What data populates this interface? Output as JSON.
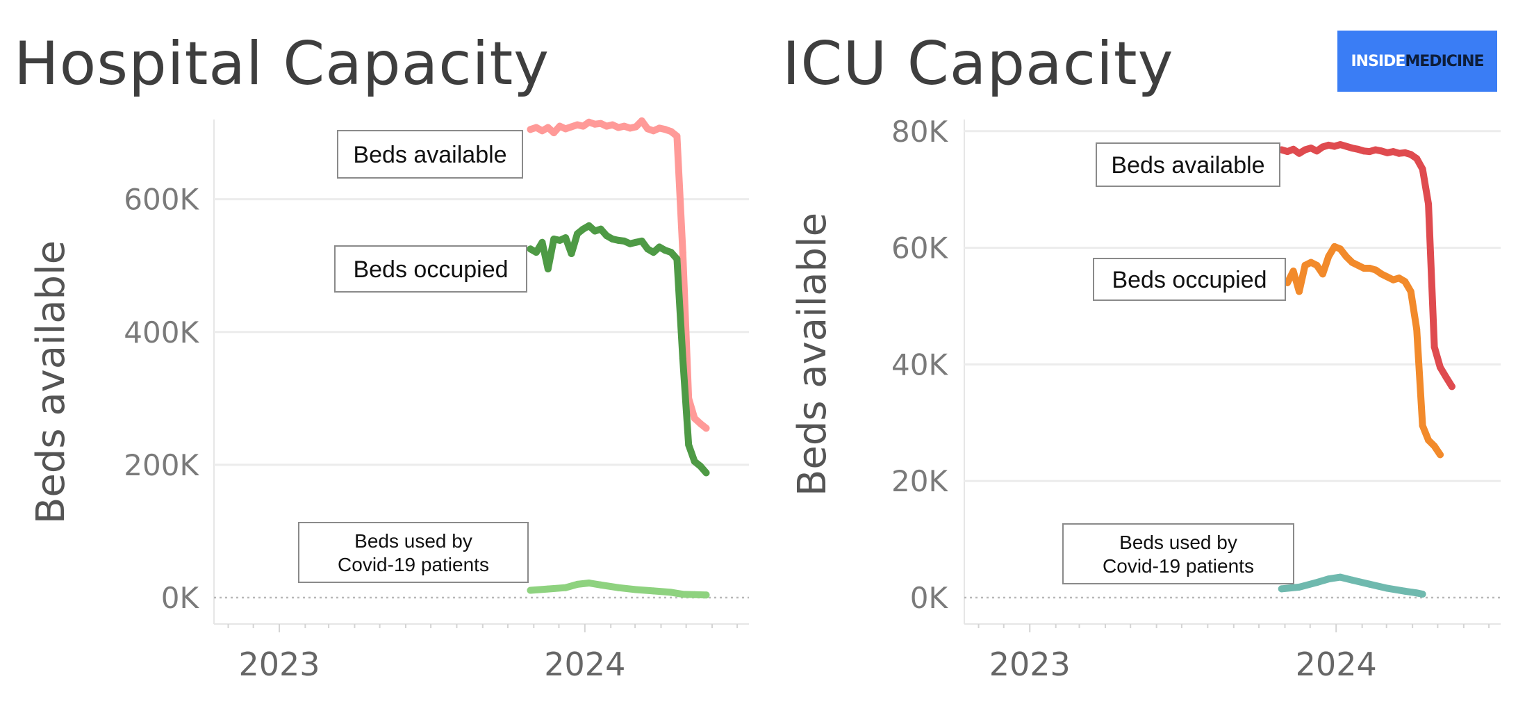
{
  "header": {
    "brand": {
      "part1": "INSIDE",
      "part2": "MEDICINE"
    }
  },
  "chart_data": [
    {
      "type": "line",
      "title": "Hospital Capacity",
      "ylabel": "Beds available",
      "xlabel": "",
      "ylim": [
        0,
        720000
      ],
      "yticks": [
        0,
        200000,
        400000,
        600000
      ],
      "ytick_labels": [
        "0K",
        "200K",
        "400K",
        "600K"
      ],
      "xlim": [
        "2022-10-15",
        "2024-07-15"
      ],
      "xticks": [
        "2023-01-01",
        "2024-01-01"
      ],
      "xtick_labels": [
        "2023",
        "2024"
      ],
      "grid": true,
      "series": [
        {
          "name": "Beds available",
          "color": "#ff9a98",
          "points": [
            [
              "2023-10-28",
              705000
            ],
            [
              "2023-11-04",
              708000
            ],
            [
              "2023-11-11",
              703000
            ],
            [
              "2023-11-18",
              708000
            ],
            [
              "2023-11-25",
              700000
            ],
            [
              "2023-12-02",
              710000
            ],
            [
              "2023-12-09",
              706000
            ],
            [
              "2023-12-16",
              709000
            ],
            [
              "2023-12-23",
              712000
            ],
            [
              "2023-12-30",
              710000
            ],
            [
              "2024-01-06",
              716000
            ],
            [
              "2024-01-13",
              713000
            ],
            [
              "2024-01-20",
              714000
            ],
            [
              "2024-01-27",
              710000
            ],
            [
              "2024-02-03",
              712000
            ],
            [
              "2024-02-10",
              708000
            ],
            [
              "2024-02-17",
              710000
            ],
            [
              "2024-02-24",
              707000
            ],
            [
              "2024-03-02",
              709000
            ],
            [
              "2024-03-09",
              718000
            ],
            [
              "2024-03-16",
              706000
            ],
            [
              "2024-03-23",
              703000
            ],
            [
              "2024-03-30",
              707000
            ],
            [
              "2024-04-06",
              705000
            ],
            [
              "2024-04-13",
              702000
            ],
            [
              "2024-04-20",
              695000
            ],
            [
              "2024-04-27",
              520000
            ],
            [
              "2024-05-04",
              300000
            ],
            [
              "2024-05-11",
              270000
            ],
            [
              "2024-05-18",
              262000
            ],
            [
              "2024-05-25",
              255000
            ]
          ]
        },
        {
          "name": "Beds occupied",
          "color": "#4e9a45",
          "points": [
            [
              "2023-10-28",
              525000
            ],
            [
              "2023-11-04",
              520000
            ],
            [
              "2023-11-11",
              535000
            ],
            [
              "2023-11-18",
              495000
            ],
            [
              "2023-11-25",
              540000
            ],
            [
              "2023-12-02",
              538000
            ],
            [
              "2023-12-09",
              542000
            ],
            [
              "2023-12-16",
              518000
            ],
            [
              "2023-12-23",
              548000
            ],
            [
              "2023-12-30",
              555000
            ],
            [
              "2024-01-06",
              560000
            ],
            [
              "2024-01-13",
              552000
            ],
            [
              "2024-01-20",
              555000
            ],
            [
              "2024-01-27",
              545000
            ],
            [
              "2024-02-03",
              540000
            ],
            [
              "2024-02-10",
              538000
            ],
            [
              "2024-02-17",
              537000
            ],
            [
              "2024-02-24",
              533000
            ],
            [
              "2024-03-02",
              535000
            ],
            [
              "2024-03-09",
              537000
            ],
            [
              "2024-03-16",
              525000
            ],
            [
              "2024-03-23",
              520000
            ],
            [
              "2024-03-30",
              528000
            ],
            [
              "2024-04-06",
              523000
            ],
            [
              "2024-04-13",
              520000
            ],
            [
              "2024-04-20",
              510000
            ],
            [
              "2024-04-27",
              360000
            ],
            [
              "2024-05-04",
              230000
            ],
            [
              "2024-05-11",
              205000
            ],
            [
              "2024-05-18",
              198000
            ],
            [
              "2024-05-25",
              188000
            ]
          ]
        },
        {
          "name": "Beds used by Covid-19 patients",
          "color": "#8ed27f",
          "points": [
            [
              "2023-10-28",
              11000
            ],
            [
              "2023-11-18",
              13000
            ],
            [
              "2023-12-09",
              15000
            ],
            [
              "2023-12-23",
              20000
            ],
            [
              "2024-01-06",
              22000
            ],
            [
              "2024-01-20",
              19000
            ],
            [
              "2024-02-10",
              15000
            ],
            [
              "2024-03-02",
              12000
            ],
            [
              "2024-03-23",
              10000
            ],
            [
              "2024-04-13",
              8000
            ],
            [
              "2024-04-27",
              5000
            ],
            [
              "2024-05-11",
              4500
            ],
            [
              "2024-05-25",
              4000
            ]
          ]
        }
      ],
      "annotations": [
        {
          "lines": [
            "Beds available"
          ]
        },
        {
          "lines": [
            "Beds occupied"
          ]
        },
        {
          "lines": [
            "Beds used by",
            "Covid-19 patients"
          ]
        }
      ]
    },
    {
      "type": "line",
      "title": "ICU Capacity",
      "ylabel": "Beds available",
      "xlabel": "",
      "ylim": [
        0,
        82000
      ],
      "yticks": [
        0,
        20000,
        40000,
        60000,
        80000
      ],
      "ytick_labels": [
        "0K",
        "20K",
        "40K",
        "60K",
        "80K"
      ],
      "xlim": [
        "2022-10-15",
        "2024-07-15"
      ],
      "xticks": [
        "2023-01-01",
        "2024-01-01"
      ],
      "xtick_labels": [
        "2023",
        "2024"
      ],
      "grid": true,
      "series": [
        {
          "name": "Beds available",
          "color": "#df4b4f",
          "points": [
            [
              "2023-10-28",
              76800
            ],
            [
              "2023-11-04",
              76500
            ],
            [
              "2023-11-11",
              76900
            ],
            [
              "2023-11-18",
              76200
            ],
            [
              "2023-11-25",
              76800
            ],
            [
              "2023-12-02",
              77100
            ],
            [
              "2023-12-09",
              76600
            ],
            [
              "2023-12-16",
              77300
            ],
            [
              "2023-12-23",
              77600
            ],
            [
              "2023-12-30",
              77400
            ],
            [
              "2024-01-06",
              77700
            ],
            [
              "2024-01-13",
              77400
            ],
            [
              "2024-01-20",
              77100
            ],
            [
              "2024-01-27",
              76900
            ],
            [
              "2024-02-03",
              76600
            ],
            [
              "2024-02-10",
              76500
            ],
            [
              "2024-02-17",
              76800
            ],
            [
              "2024-02-24",
              76600
            ],
            [
              "2024-03-02",
              76300
            ],
            [
              "2024-03-09",
              76500
            ],
            [
              "2024-03-16",
              76200
            ],
            [
              "2024-03-23",
              76300
            ],
            [
              "2024-03-30",
              76000
            ],
            [
              "2024-04-06",
              75300
            ],
            [
              "2024-04-13",
              73500
            ],
            [
              "2024-04-20",
              67500
            ],
            [
              "2024-04-27",
              43000
            ],
            [
              "2024-05-04",
              39500
            ],
            [
              "2024-05-11",
              37800
            ],
            [
              "2024-05-18",
              36200
            ]
          ]
        },
        {
          "name": "Beds occupied",
          "color": "#f28a2b",
          "points": [
            [
              "2023-10-28",
              54500
            ],
            [
              "2023-11-04",
              54000
            ],
            [
              "2023-11-11",
              56000
            ],
            [
              "2023-11-18",
              52500
            ],
            [
              "2023-11-25",
              57000
            ],
            [
              "2023-12-02",
              57500
            ],
            [
              "2023-12-09",
              57000
            ],
            [
              "2023-12-16",
              55500
            ],
            [
              "2023-12-23",
              58500
            ],
            [
              "2023-12-30",
              60200
            ],
            [
              "2024-01-06",
              59800
            ],
            [
              "2024-01-13",
              58500
            ],
            [
              "2024-01-20",
              57500
            ],
            [
              "2024-01-27",
              57000
            ],
            [
              "2024-02-03",
              56500
            ],
            [
              "2024-02-10",
              56500
            ],
            [
              "2024-02-17",
              56200
            ],
            [
              "2024-02-24",
              55500
            ],
            [
              "2024-03-02",
              55000
            ],
            [
              "2024-03-09",
              54500
            ],
            [
              "2024-03-16",
              54800
            ],
            [
              "2024-03-23",
              54200
            ],
            [
              "2024-03-30",
              52500
            ],
            [
              "2024-04-06",
              46000
            ],
            [
              "2024-04-13",
              29500
            ],
            [
              "2024-04-20",
              27000
            ],
            [
              "2024-04-27",
              26000
            ],
            [
              "2024-05-04",
              24500
            ]
          ]
        },
        {
          "name": "Beds used by Covid-19 patients",
          "color": "#6fb9ae",
          "points": [
            [
              "2023-10-28",
              1500
            ],
            [
              "2023-11-18",
              1800
            ],
            [
              "2023-12-09",
              2600
            ],
            [
              "2023-12-23",
              3200
            ],
            [
              "2024-01-06",
              3500
            ],
            [
              "2024-01-20",
              3000
            ],
            [
              "2024-02-10",
              2300
            ],
            [
              "2024-03-02",
              1600
            ],
            [
              "2024-03-23",
              1100
            ],
            [
              "2024-04-06",
              800
            ],
            [
              "2024-04-13",
              600
            ]
          ]
        }
      ],
      "annotations": [
        {
          "lines": [
            "Beds available"
          ]
        },
        {
          "lines": [
            "Beds occupied"
          ]
        },
        {
          "lines": [
            "Beds used by",
            "Covid-19 patients"
          ]
        }
      ]
    }
  ]
}
